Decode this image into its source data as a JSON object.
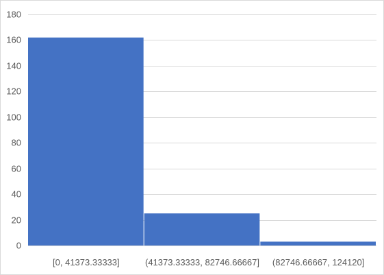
{
  "chart_data": {
    "type": "bar",
    "categories": [
      "[0, 41373.33333]",
      "(41373.33333, 82746.66667]",
      "(82746.66667, 124120]"
    ],
    "values": [
      162,
      25,
      3
    ],
    "title": "",
    "xlabel": "",
    "ylabel": "",
    "ylim": [
      0,
      180
    ],
    "yticks": [
      0,
      20,
      40,
      60,
      80,
      100,
      120,
      140,
      160,
      180
    ],
    "grid": true,
    "legend": "none",
    "bar_color": "#4472c4",
    "grid_color": "#d9d9d9"
  }
}
